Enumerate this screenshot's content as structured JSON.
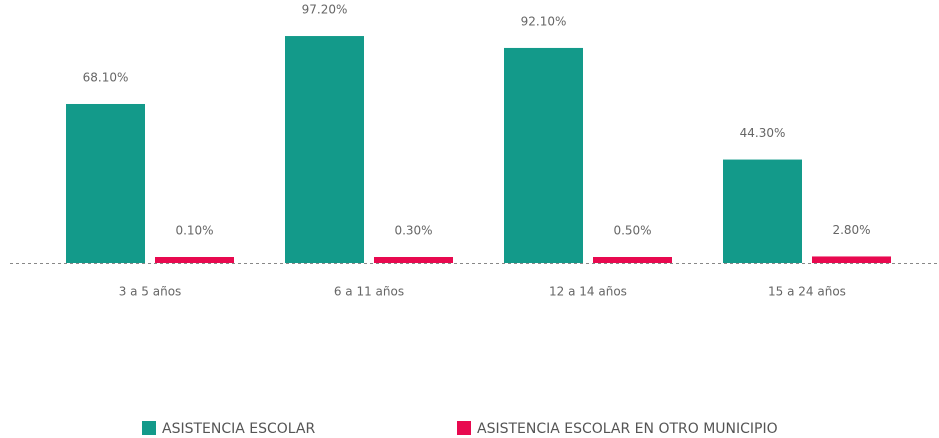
{
  "chart_data": {
    "type": "bar",
    "categories": [
      "3 a 5 años",
      "6 a 11 años",
      "12 a 14 años",
      "15 a 24 años"
    ],
    "series": [
      {
        "name": "ASISTENCIA ESCOLAR",
        "color": "#139a8a",
        "values": [
          68.1,
          97.2,
          92.1,
          44.3
        ],
        "value_labels": [
          "68.10%",
          "97.20%",
          "92.10%",
          "44.30%"
        ]
      },
      {
        "name": "ASISTENCIA ESCOLAR EN OTRO MUNICIPIO",
        "color": "#e8094f",
        "values": [
          0.1,
          0.3,
          0.5,
          2.8
        ],
        "value_labels": [
          "0.10%",
          "0.30%",
          "0.50%",
          "2.80%"
        ]
      }
    ]
  }
}
